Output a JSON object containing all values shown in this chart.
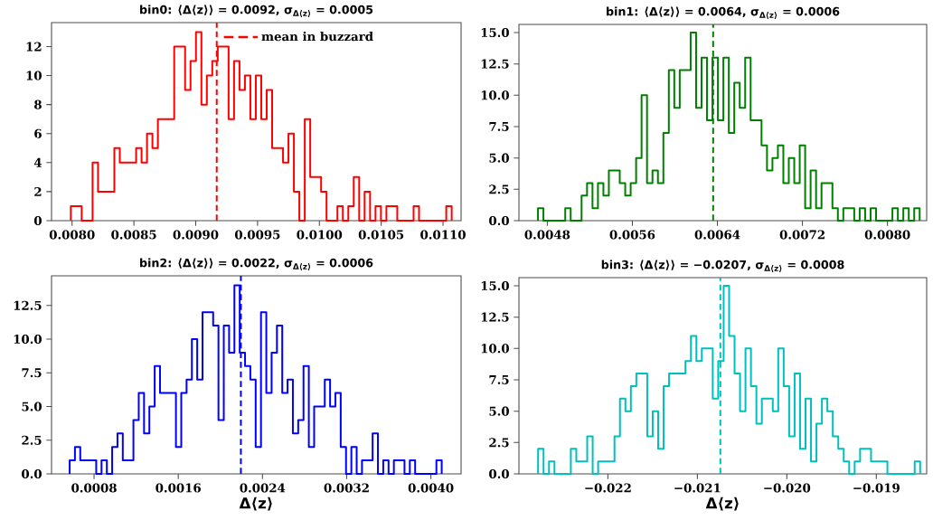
{
  "chart_data": [
    {
      "type": "histogram",
      "title": "bin0: ⟨Δ⟨z⟩⟩ = 0.0092, σ$_{Δ⟨z⟩}$ = 0.0005",
      "color": "#ff0000",
      "bins": [
        0.00799,
        0.008034,
        0.008078,
        0.008122,
        0.008166,
        0.00821,
        0.008254,
        0.008298,
        0.008342,
        0.008386,
        0.00843,
        0.008474,
        0.008518,
        0.008562,
        0.008606,
        0.00865,
        0.008694,
        0.008738,
        0.008782,
        0.008826,
        0.00887,
        0.008914,
        0.008958,
        0.009002,
        0.009046,
        0.00909,
        0.009134,
        0.009178,
        0.009222,
        0.009266,
        0.00931,
        0.009354,
        0.009398,
        0.009442,
        0.009486,
        0.00953,
        0.009574,
        0.009618,
        0.009662,
        0.009706,
        0.00975,
        0.009794,
        0.009838,
        0.009882,
        0.009926,
        0.00997,
        0.010014,
        0.010058,
        0.010102,
        0.010146,
        0.01019,
        0.010234,
        0.010278,
        0.010322,
        0.010366,
        0.01041,
        0.010454,
        0.010498,
        0.010542,
        0.010586,
        0.01063,
        0.010674,
        0.010718,
        0.010762,
        0.010806,
        0.01085,
        0.010894,
        0.010938,
        0.010982,
        0.011026,
        0.01107
      ],
      "values": [
        1,
        1,
        0,
        0,
        4,
        2,
        2,
        2,
        5,
        4,
        4,
        4,
        5,
        4,
        6,
        5,
        7,
        7,
        7,
        12,
        12,
        9,
        11,
        13,
        8,
        10,
        11,
        12,
        12,
        7,
        11,
        9,
        10,
        7,
        10,
        7,
        9,
        5,
        5,
        4,
        6,
        2,
        0,
        7,
        3,
        3,
        2,
        0,
        0,
        1,
        0,
        1,
        3,
        0,
        2,
        0,
        1,
        0,
        1,
        1,
        0,
        0,
        0,
        1,
        0,
        0,
        0,
        0,
        0,
        1
      ],
      "xlim": [
        0.007834,
        0.011146
      ],
      "ylim": [
        0,
        13.65
      ],
      "xticks": [
        {
          "value": 0.008,
          "label": "0.0080"
        },
        {
          "value": 0.0085,
          "label": "0.0085"
        },
        {
          "value": 0.009,
          "label": "0.0090"
        },
        {
          "value": 0.0095,
          "label": "0.0095"
        },
        {
          "value": 0.01,
          "label": "0.0100"
        },
        {
          "value": 0.0105,
          "label": "0.0105"
        },
        {
          "value": 0.011,
          "label": "0.0110"
        }
      ],
      "yticks": [
        0,
        2,
        4,
        6,
        8,
        10,
        12
      ],
      "ref_lines": [
        {
          "axis": "x",
          "value": 0.00917,
          "label": "mean in buzzard",
          "color": "#ff0000",
          "line_style": "dashed"
        }
      ],
      "legend": "top right"
    },
    {
      "type": "histogram",
      "title": "bin1: ⟨Δ⟨z⟩⟩ = 0.0064, σ$_{Δ⟨z⟩}$ = 0.0006",
      "color": "#008000",
      "bins": [
        0.004712,
        0.0047633,
        0.0048146,
        0.0048659,
        0.0049172,
        0.0049685,
        0.0050198,
        0.0050711,
        0.0051224,
        0.0051737,
        0.005225,
        0.0052763,
        0.0053276,
        0.0053789,
        0.0054302,
        0.0054815,
        0.0055328,
        0.0055841,
        0.0056354,
        0.0056867,
        0.005738,
        0.0057893,
        0.0058406,
        0.0058919,
        0.0059432,
        0.0059945,
        0.0060458,
        0.0060971,
        0.0061484,
        0.0061997,
        0.006251,
        0.0063023,
        0.0063536,
        0.0064049,
        0.0064562,
        0.0065075,
        0.0065588,
        0.0066101,
        0.0066614,
        0.0067127,
        0.006764,
        0.0068153,
        0.0068666,
        0.0069179,
        0.0069692,
        0.0070205,
        0.0070718,
        0.0071231,
        0.0071744,
        0.0072257,
        0.007277,
        0.0073283,
        0.0073796,
        0.0074309,
        0.0074822,
        0.0075335,
        0.0075848,
        0.0076361,
        0.0076874,
        0.0077387,
        0.00779,
        0.0078413,
        0.0078926,
        0.0079439,
        0.0079952,
        0.0080465,
        0.0080978,
        0.0081491,
        0.0082004,
        0.0082517,
        0.008303
      ],
      "values": [
        1,
        0,
        0,
        0,
        0,
        1,
        0,
        0,
        2,
        3,
        1,
        3,
        2,
        4,
        4,
        3,
        2,
        3,
        5,
        10,
        3,
        4,
        3,
        7,
        12,
        9,
        12,
        12,
        15,
        9,
        13,
        8,
        13,
        8,
        13,
        7,
        11,
        9,
        13,
        8,
        8,
        6,
        4,
        5,
        6,
        3,
        5,
        3,
        6,
        1,
        4,
        1,
        3,
        3,
        1,
        0,
        1,
        1,
        0,
        1,
        0,
        1,
        0,
        0,
        0,
        1,
        0,
        1,
        0,
        1
      ],
      "xlim": [
        0.004533,
        0.008369
      ],
      "ylim": [
        0,
        15.65
      ],
      "xticks": [
        {
          "value": 0.0048,
          "label": "0.0048"
        },
        {
          "value": 0.0056,
          "label": "0.0056"
        },
        {
          "value": 0.0064,
          "label": "0.0064"
        },
        {
          "value": 0.0072,
          "label": "0.0072"
        },
        {
          "value": 0.008,
          "label": "0.0080"
        }
      ],
      "yticks": [
        {
          "value": 0,
          "label": "0.0"
        },
        {
          "value": 2.5,
          "label": "2.5"
        },
        {
          "value": 5,
          "label": "5.0"
        },
        {
          "value": 7.5,
          "label": "7.5"
        },
        {
          "value": 10,
          "label": "10.0"
        },
        {
          "value": 12.5,
          "label": "12.5"
        },
        {
          "value": 15,
          "label": "15.0"
        }
      ],
      "ref_lines": [
        {
          "axis": "x",
          "value": 0.00636,
          "color": "#008000",
          "line_style": "dashed"
        }
      ]
    },
    {
      "type": "histogram",
      "title": "bin2: ⟨Δ⟨z⟩⟩ = 0.0022, σ$_{Δ⟨z⟩}$ = 0.0006",
      "xlabel": "Δ⟨z⟩",
      "color": "#0000ff",
      "bins": [
        0.000568,
        0.0006185,
        0.000669,
        0.0007195,
        0.00077,
        0.0008205,
        0.000871,
        0.0009215,
        0.000972,
        0.0010225,
        0.001073,
        0.0011235,
        0.001174,
        0.0012245,
        0.001275,
        0.0013255,
        0.001376,
        0.0014265,
        0.001477,
        0.0015275,
        0.001578,
        0.0016285,
        0.001679,
        0.0017295,
        0.00178,
        0.0018305,
        0.001881,
        0.0019315,
        0.001982,
        0.0020325,
        0.002083,
        0.0021335,
        0.002184,
        0.0022345,
        0.002285,
        0.0023355,
        0.002386,
        0.0024365,
        0.002487,
        0.0025375,
        0.002588,
        0.0026385,
        0.002689,
        0.0027395,
        0.00279,
        0.0028405,
        0.002891,
        0.0029415,
        0.002992,
        0.0030425,
        0.003093,
        0.0031435,
        0.003194,
        0.0032445,
        0.003295,
        0.0033455,
        0.003396,
        0.0034465,
        0.003497,
        0.0035475,
        0.003598,
        0.0036485,
        0.003699,
        0.0037495,
        0.0038,
        0.0038505,
        0.003901,
        0.0039515,
        0.004002,
        0.0040525,
        0.004103
      ],
      "values": [
        1,
        2,
        1,
        1,
        1,
        0,
        1,
        0,
        2,
        3,
        1,
        1,
        4,
        6,
        3,
        5,
        8,
        6,
        6,
        6,
        2,
        6,
        7,
        10,
        7,
        12,
        12,
        11,
        4,
        11,
        9,
        14,
        9,
        8,
        7,
        2,
        12,
        6,
        9,
        11,
        6,
        7,
        3,
        4,
        8,
        2,
        5,
        5,
        7,
        5,
        6,
        2,
        0,
        2,
        0,
        1,
        1,
        3,
        0,
        1,
        0,
        1,
        1,
        0,
        1,
        0,
        0,
        0,
        0,
        1
      ],
      "xlim": [
        0.000396,
        0.004287
      ],
      "ylim": [
        0,
        14.7
      ],
      "xticks": [
        {
          "value": 0.0008,
          "label": "0.0008"
        },
        {
          "value": 0.0016,
          "label": "0.0016"
        },
        {
          "value": 0.0024,
          "label": "0.0024"
        },
        {
          "value": 0.0032,
          "label": "0.0032"
        },
        {
          "value": 0.004,
          "label": "0.0040"
        }
      ],
      "yticks": [
        {
          "value": 0,
          "label": "0.0"
        },
        {
          "value": 2.5,
          "label": "2.5"
        },
        {
          "value": 5,
          "label": "5.0"
        },
        {
          "value": 7.5,
          "label": "7.5"
        },
        {
          "value": 10,
          "label": "10.0"
        },
        {
          "value": 12.5,
          "label": "12.5"
        }
      ],
      "ref_lines": [
        {
          "axis": "x",
          "value": 0.002195,
          "color": "#0000ff",
          "line_style": "dashed"
        }
      ]
    },
    {
      "type": "histogram",
      "title": "bin3: ⟨Δ⟨z⟩⟩ = −0.0207, σ$_{Δ⟨z⟩}$ = 0.0008",
      "xlabel": "Δ⟨z⟩",
      "color": "#00bfbf",
      "bins": [
        -0.02278,
        -0.022719,
        -0.022658,
        -0.022597,
        -0.022536,
        -0.022475,
        -0.022414,
        -0.022353,
        -0.022292,
        -0.022231,
        -0.02217,
        -0.022109,
        -0.022048,
        -0.021987,
        -0.021926,
        -0.021865,
        -0.021804,
        -0.021743,
        -0.021682,
        -0.021621,
        -0.02156,
        -0.021499,
        -0.021438,
        -0.021377,
        -0.021316,
        -0.021255,
        -0.021194,
        -0.021133,
        -0.021072,
        -0.021011,
        -0.02095,
        -0.020889,
        -0.020828,
        -0.020767,
        -0.020706,
        -0.020645,
        -0.020584,
        -0.020523,
        -0.020462,
        -0.020401,
        -0.02034,
        -0.020279,
        -0.020218,
        -0.020157,
        -0.020096,
        -0.020035,
        -0.019974,
        -0.019913,
        -0.019852,
        -0.019791,
        -0.01973,
        -0.019669,
        -0.019608,
        -0.019547,
        -0.019486,
        -0.019425,
        -0.019364,
        -0.019303,
        -0.019242,
        -0.019181,
        -0.01912,
        -0.019059,
        -0.018998,
        -0.018937,
        -0.018876,
        -0.018815,
        -0.018754,
        -0.018693,
        -0.018632,
        -0.018571,
        -0.01851
      ],
      "values": [
        2,
        0,
        1,
        0,
        0,
        0,
        2,
        1,
        1,
        3,
        0,
        1,
        1,
        1,
        3,
        6,
        5,
        7,
        8,
        8,
        3,
        5,
        2,
        7,
        8,
        8,
        8,
        9,
        11,
        9,
        10,
        10,
        6,
        9,
        15,
        11,
        8,
        5,
        10,
        7,
        4,
        6,
        6,
        5,
        10,
        7,
        3,
        8,
        2,
        6,
        1,
        4,
        6,
        5,
        3,
        2,
        1,
        0,
        1,
        2,
        2,
        1,
        1,
        1,
        0,
        0,
        0,
        0,
        0,
        1
      ],
      "xlim": [
        -0.022994,
        -0.018437
      ],
      "ylim": [
        0,
        15.65
      ],
      "xticks": [
        {
          "value": -0.022,
          "label": "−0.022"
        },
        {
          "value": -0.021,
          "label": "−0.021"
        },
        {
          "value": -0.02,
          "label": "−0.020"
        },
        {
          "value": -0.019,
          "label": "−0.019"
        }
      ],
      "yticks": [
        {
          "value": 0,
          "label": "0.0"
        },
        {
          "value": 2.5,
          "label": "2.5"
        },
        {
          "value": 5,
          "label": "5.0"
        },
        {
          "value": 7.5,
          "label": "7.5"
        },
        {
          "value": 10,
          "label": "10.0"
        },
        {
          "value": 12.5,
          "label": "12.5"
        },
        {
          "value": 15,
          "label": "15.0"
        }
      ],
      "ref_lines": [
        {
          "axis": "x",
          "value": -0.020743,
          "color": "#00bfbf",
          "line_style": "dashed"
        }
      ]
    }
  ]
}
